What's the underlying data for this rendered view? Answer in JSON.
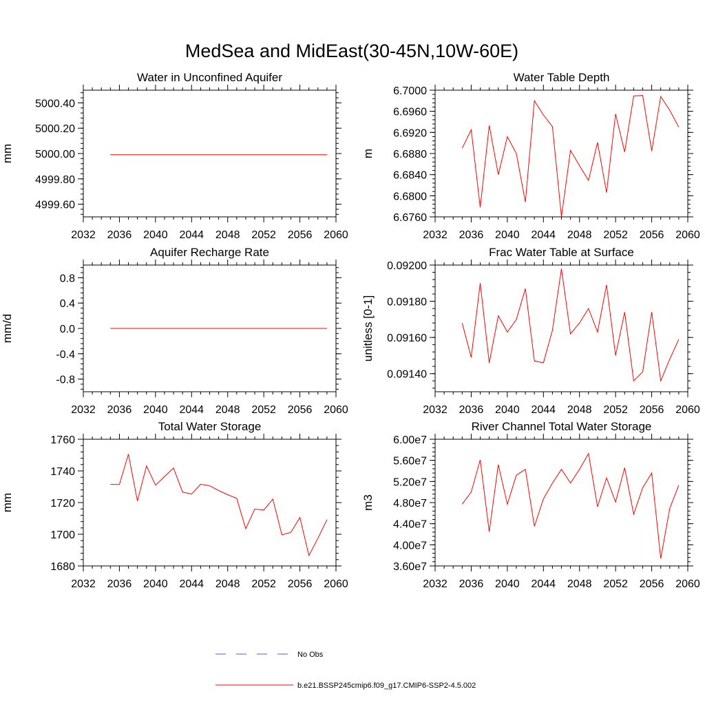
{
  "title": "MedSea and MidEast(30-45N,10W-60E)",
  "colors": {
    "model": "#ff0000",
    "obs": "#4a5fd0",
    "axis": "#000000"
  },
  "legend": {
    "obs_label": "No Obs",
    "model_label": "b.e21.BSSP245cmip6.f09_g17.CMIP6-SSP2-4.5.002"
  },
  "chart_data": [
    {
      "type": "line",
      "title": "Water in Unconfined Aquifer",
      "ylabel": "mm",
      "xlim": [
        2032,
        2060
      ],
      "ylim": [
        4999.5,
        5000.5
      ],
      "xticks": [
        2032,
        2036,
        2040,
        2044,
        2048,
        2052,
        2056,
        2060
      ],
      "xticklabels": [
        "2032",
        "2036",
        "2040",
        "2044",
        "2048",
        "2052",
        "2056",
        "2060"
      ],
      "yticks": [
        4999.6,
        4999.8,
        5000.0,
        5000.2,
        5000.4
      ],
      "yticklabels": [
        "4999.60",
        "4999.80",
        "5000.00",
        "5000.20",
        "5000.40"
      ],
      "series": [
        {
          "name": "b.e21.BSSP245cmip6.f09_g17.CMIP6-SSP2-4.5.002",
          "x": [
            2035,
            2036,
            2037,
            2038,
            2039,
            2040,
            2041,
            2042,
            2043,
            2044,
            2045,
            2046,
            2047,
            2048,
            2049,
            2050,
            2051,
            2052,
            2053,
            2054,
            2055,
            2056,
            2057,
            2058,
            2059
          ],
          "values": [
            4999.99,
            4999.99,
            4999.99,
            4999.99,
            4999.99,
            4999.99,
            4999.99,
            4999.99,
            4999.99,
            4999.99,
            4999.99,
            4999.99,
            4999.99,
            4999.99,
            4999.99,
            4999.99,
            4999.99,
            4999.99,
            4999.99,
            4999.99,
            4999.99,
            4999.99,
            4999.99,
            4999.99,
            4999.99
          ]
        }
      ]
    },
    {
      "type": "line",
      "title": "Water Table Depth",
      "ylabel": "m",
      "xlim": [
        2032,
        2060
      ],
      "ylim": [
        6.676,
        6.7
      ],
      "xticks": [
        2032,
        2036,
        2040,
        2044,
        2048,
        2052,
        2056,
        2060
      ],
      "xticklabels": [
        "2032",
        "2036",
        "2040",
        "2044",
        "2048",
        "2052",
        "2056",
        "2060"
      ],
      "yticks": [
        6.676,
        6.68,
        6.684,
        6.688,
        6.692,
        6.696,
        6.7
      ],
      "yticklabels": [
        "6.6760",
        "6.6800",
        "6.6840",
        "6.6880",
        "6.6920",
        "6.6960",
        "6.7000"
      ],
      "series": [
        {
          "name": "b.e21.BSSP245cmip6.f09_g17.CMIP6-SSP2-4.5.002",
          "x": [
            2035,
            2036,
            2037,
            2038,
            2039,
            2040,
            2041,
            2042,
            2043,
            2044,
            2045,
            2046,
            2047,
            2048,
            2049,
            2050,
            2051,
            2052,
            2053,
            2054,
            2055,
            2056,
            2057,
            2058,
            2059
          ],
          "values": [
            6.689,
            6.6925,
            6.6778,
            6.6933,
            6.684,
            6.6912,
            6.688,
            6.6788,
            6.698,
            6.6953,
            6.6931,
            6.676,
            6.6886,
            6.6857,
            6.6829,
            6.6901,
            6.6806,
            6.6955,
            6.6883,
            6.6989,
            6.699,
            6.6885,
            6.6988,
            6.6962,
            6.693
          ]
        }
      ]
    },
    {
      "type": "line",
      "title": "Aquifer Recharge Rate",
      "ylabel": "mm/d",
      "xlim": [
        2032,
        2060
      ],
      "ylim": [
        -1.0,
        1.0
      ],
      "xticks": [
        2032,
        2036,
        2040,
        2044,
        2048,
        2052,
        2056,
        2060
      ],
      "xticklabels": [
        "2032",
        "2036",
        "2040",
        "2044",
        "2048",
        "2052",
        "2056",
        "2060"
      ],
      "yticks": [
        -0.8,
        -0.4,
        0.0,
        0.4,
        0.8
      ],
      "yticklabels": [
        "-0.8",
        "-0.4",
        "0.0",
        "0.4",
        "0.8"
      ],
      "series": [
        {
          "name": "b.e21.BSSP245cmip6.f09_g17.CMIP6-SSP2-4.5.002",
          "x": [
            2035,
            2036,
            2037,
            2038,
            2039,
            2040,
            2041,
            2042,
            2043,
            2044,
            2045,
            2046,
            2047,
            2048,
            2049,
            2050,
            2051,
            2052,
            2053,
            2054,
            2055,
            2056,
            2057,
            2058,
            2059
          ],
          "values": [
            0,
            0,
            0,
            0,
            0,
            0,
            0,
            0,
            0,
            0,
            0,
            0,
            0,
            0,
            0,
            0,
            0,
            0,
            0,
            0,
            0,
            0,
            0,
            0,
            0
          ]
        }
      ]
    },
    {
      "type": "line",
      "title": "Frac Water Table at Surface",
      "ylabel": "unitless [0-1]",
      "xlim": [
        2032,
        2060
      ],
      "ylim": [
        0.0913,
        0.092
      ],
      "xticks": [
        2032,
        2036,
        2040,
        2044,
        2048,
        2052,
        2056,
        2060
      ],
      "xticklabels": [
        "2032",
        "2036",
        "2040",
        "2044",
        "2048",
        "2052",
        "2056",
        "2060"
      ],
      "yticks": [
        0.0914,
        0.0916,
        0.0918,
        0.092
      ],
      "yticklabels": [
        "0.09140",
        "0.09160",
        "0.09180",
        "0.09200"
      ],
      "series": [
        {
          "name": "b.e21.BSSP245cmip6.f09_g17.CMIP6-SSP2-4.5.002",
          "x": [
            2035,
            2036,
            2037,
            2038,
            2039,
            2040,
            2041,
            2042,
            2043,
            2044,
            2045,
            2046,
            2047,
            2048,
            2049,
            2050,
            2051,
            2052,
            2053,
            2054,
            2055,
            2056,
            2057,
            2058,
            2059
          ],
          "values": [
            0.09168,
            0.09149,
            0.0919,
            0.09146,
            0.09172,
            0.09163,
            0.0917,
            0.09187,
            0.09147,
            0.09146,
            0.09164,
            0.09198,
            0.09162,
            0.09168,
            0.09176,
            0.09163,
            0.09189,
            0.0915,
            0.09174,
            0.09136,
            0.09141,
            0.09174,
            0.09136,
            0.09148,
            0.09159
          ]
        }
      ]
    },
    {
      "type": "line",
      "title": "Total Water Storage",
      "ylabel": "mm",
      "xlim": [
        2032,
        2060
      ],
      "ylim": [
        1680,
        1760
      ],
      "xticks": [
        2032,
        2036,
        2040,
        2044,
        2048,
        2052,
        2056,
        2060
      ],
      "xticklabels": [
        "2032",
        "2036",
        "2040",
        "2044",
        "2048",
        "2052",
        "2056",
        "2060"
      ],
      "yticks": [
        1680,
        1700,
        1720,
        1740,
        1760
      ],
      "yticklabels": [
        "1680",
        "1700",
        "1720",
        "1740",
        "1760"
      ],
      "series": [
        {
          "name": "b.e21.BSSP245cmip6.f09_g17.CMIP6-SSP2-4.5.002",
          "x": [
            2035,
            2036,
            2037,
            2038,
            2039,
            2040,
            2041,
            2042,
            2043,
            2044,
            2045,
            2046,
            2047,
            2048,
            2049,
            2050,
            2051,
            2052,
            2053,
            2054,
            2055,
            2056,
            2057,
            2058,
            2059
          ],
          "values": [
            1731.5,
            1731.4,
            1750.6,
            1721.0,
            1743.1,
            1731.0,
            1736.5,
            1741.8,
            1726.6,
            1725.4,
            1731.6,
            1730.6,
            1727.6,
            1725.0,
            1722.7,
            1703.5,
            1715.9,
            1715.3,
            1722.2,
            1699.6,
            1701.2,
            1710.6,
            1686.6,
            1697.5,
            1709.2
          ]
        }
      ]
    },
    {
      "type": "line",
      "title": "River Channel Total Water Storage",
      "ylabel": "m3",
      "xlim": [
        2032,
        2060
      ],
      "ylim": [
        36000000,
        60000000
      ],
      "xticks": [
        2032,
        2036,
        2040,
        2044,
        2048,
        2052,
        2056,
        2060
      ],
      "xticklabels": [
        "2032",
        "2036",
        "2040",
        "2044",
        "2048",
        "2052",
        "2056",
        "2060"
      ],
      "yticks": [
        36000000,
        40000000,
        44000000,
        48000000,
        52000000,
        56000000,
        60000000
      ],
      "yticklabels": [
        "3.60e7",
        "4.00e7",
        "4.40e7",
        "4.80e7",
        "5.20e7",
        "5.60e7",
        "6.00e7"
      ],
      "series": [
        {
          "name": "b.e21.BSSP245cmip6.f09_g17.CMIP6-SSP2-4.5.002",
          "x": [
            2035,
            2036,
            2037,
            2038,
            2039,
            2040,
            2041,
            2042,
            2043,
            2044,
            2045,
            2046,
            2047,
            2048,
            2049,
            2050,
            2051,
            2052,
            2053,
            2054,
            2055,
            2056,
            2057,
            2058,
            2059
          ],
          "values": [
            47700000,
            50000000,
            56100000,
            42500000,
            55200000,
            47700000,
            53200000,
            54300000,
            43500000,
            48700000,
            51700000,
            54300000,
            51700000,
            54300000,
            57300000,
            47200000,
            52700000,
            48100000,
            54600000,
            45800000,
            50800000,
            53600000,
            37400000,
            46900000,
            51300000
          ]
        }
      ]
    }
  ]
}
